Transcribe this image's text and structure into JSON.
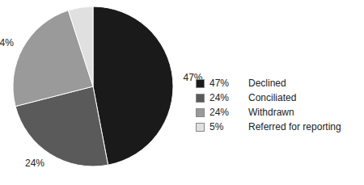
{
  "chart_data": {
    "type": "pie",
    "categories": [
      "Declined",
      "Conciliated",
      "Withdrawn",
      "Referred for reporting"
    ],
    "values": [
      47,
      24,
      24,
      5
    ],
    "value_labels": [
      "47%",
      "24%",
      "24%",
      "5%"
    ],
    "colors": [
      "#1a1a1a",
      "#5a5a5a",
      "#9a9a9a",
      "#e0e0e0"
    ],
    "data_labels": true,
    "legend": "right"
  }
}
